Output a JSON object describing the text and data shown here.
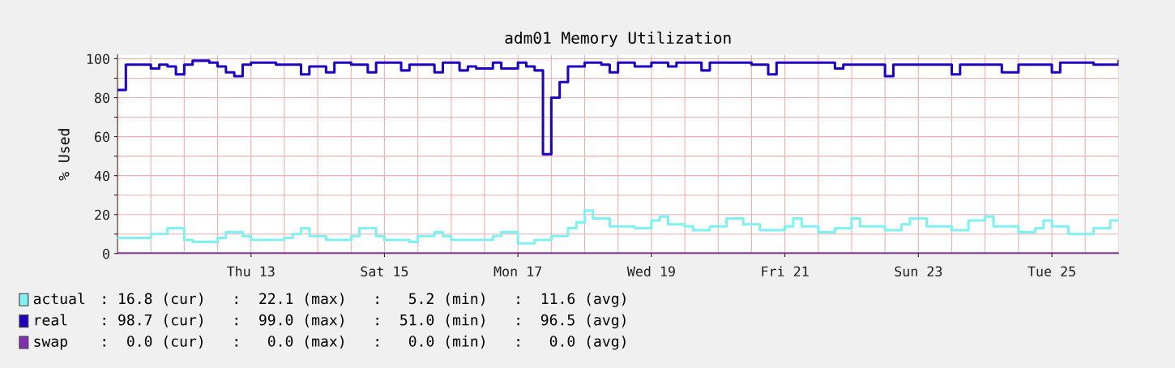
{
  "chart_data": {
    "type": "step",
    "title": "adm01 Memory Utilization",
    "ylabel": "% Used",
    "categories": [
      null,
      null,
      null,
      null,
      null,
      null,
      null,
      null,
      null,
      null,
      null,
      null,
      null,
      null,
      null,
      null,
      "Thu 13",
      null,
      null,
      null,
      null,
      null,
      null,
      null,
      null,
      null,
      null,
      null,
      null,
      null,
      null,
      null,
      "Sat 15",
      null,
      null,
      null,
      null,
      null,
      null,
      null,
      null,
      null,
      null,
      null,
      null,
      null,
      null,
      null,
      "Mon 17",
      null,
      null,
      null,
      null,
      null,
      null,
      null,
      null,
      null,
      null,
      null,
      null,
      null,
      null,
      null,
      "Wed 19",
      null,
      null,
      null,
      null,
      null,
      null,
      null,
      null,
      null,
      null,
      null,
      null,
      null,
      null,
      null,
      "Fri 21",
      null,
      null,
      null,
      null,
      null,
      null,
      null,
      null,
      null,
      null,
      null,
      null,
      null,
      null,
      null,
      "Sun 23",
      null,
      null,
      null,
      null,
      null,
      null,
      null,
      null,
      null,
      null,
      null,
      null,
      null,
      null,
      null,
      "Tue 25",
      null,
      null,
      null,
      null,
      null,
      null,
      null,
      null
    ],
    "ylim": [
      0,
      102
    ],
    "yticks": [
      0,
      {
        "value": 10,
        "label": null
      },
      20,
      {
        "value": 30,
        "label": null
      },
      40,
      {
        "value": 50,
        "label": null
      },
      60,
      {
        "value": 70,
        "label": null
      },
      80,
      {
        "value": 90,
        "label": null
      },
      100
    ],
    "grid": true,
    "legend": "bottom",
    "marker": "none",
    "line_style": "solid",
    "series": [
      {
        "name": "actual",
        "color": "#80f0f0",
        "values": [
          8,
          8,
          8,
          8,
          10,
          10,
          13,
          13,
          7,
          6,
          6,
          6,
          8,
          11,
          11,
          9,
          7,
          7,
          7,
          7,
          8,
          10,
          13,
          9,
          9,
          7,
          7,
          7,
          9,
          13,
          13,
          9,
          7,
          7,
          7,
          6,
          9,
          9,
          11,
          9,
          7,
          7,
          7,
          7,
          7,
          9,
          11,
          11,
          5.2,
          5.2,
          7,
          7,
          9,
          9,
          13,
          16,
          22.1,
          18,
          18,
          14,
          14,
          14,
          13,
          13,
          17,
          19,
          15,
          15,
          14,
          12,
          12,
          14,
          14,
          18,
          18,
          15,
          15,
          12,
          12,
          12,
          14,
          18,
          14,
          14,
          11,
          11,
          13,
          13,
          18,
          14,
          14,
          14,
          12,
          12,
          15,
          18,
          18,
          14,
          14,
          14,
          12,
          12,
          17,
          17,
          19,
          14,
          14,
          14,
          11,
          11,
          13,
          17,
          14,
          14,
          10,
          10,
          10,
          13,
          13,
          17,
          16.8
        ]
      },
      {
        "name": "real",
        "color": "#2000c0",
        "values": [
          84,
          97,
          97,
          97,
          95,
          97,
          96,
          92,
          97,
          99,
          99,
          98,
          96,
          93,
          91,
          97,
          98,
          98,
          98,
          97,
          97,
          97,
          92,
          96,
          96,
          93,
          98,
          98,
          97,
          97,
          93,
          98,
          98,
          98,
          94,
          97,
          97,
          97,
          93,
          98,
          98,
          94,
          96,
          95,
          95,
          98,
          95,
          95,
          98,
          96,
          94,
          51,
          80,
          88,
          96,
          96,
          98,
          98,
          97,
          93,
          98,
          98,
          96,
          96,
          98,
          98,
          96,
          98,
          98,
          98,
          94,
          98,
          98,
          98,
          98,
          98,
          97,
          97,
          92,
          98,
          98,
          98,
          98,
          98,
          98,
          98,
          95,
          97,
          97,
          97,
          97,
          97,
          91,
          97,
          97,
          97,
          97,
          97,
          97,
          97,
          92,
          97,
          97,
          97,
          97,
          97,
          93,
          93,
          97,
          97,
          97,
          97,
          93,
          98,
          98,
          98,
          98,
          97,
          97,
          97,
          98.7
        ]
      },
      {
        "name": "swap",
        "color": "#8030b0",
        "values": [
          0,
          0,
          0,
          0,
          0,
          0,
          0,
          0,
          0,
          0,
          0,
          0,
          0,
          0,
          0,
          0,
          0,
          0,
          0,
          0,
          0,
          0,
          0,
          0,
          0,
          0,
          0,
          0,
          0,
          0,
          0,
          0,
          0,
          0,
          0,
          0,
          0,
          0,
          0,
          0,
          0,
          0,
          0,
          0,
          0,
          0,
          0,
          0,
          0,
          0,
          0,
          0,
          0,
          0,
          0,
          0,
          0,
          0,
          0,
          0,
          0,
          0,
          0,
          0,
          0,
          0,
          0,
          0,
          0,
          0,
          0,
          0,
          0,
          0,
          0,
          0,
          0,
          0,
          0,
          0,
          0,
          0,
          0,
          0,
          0,
          0,
          0,
          0,
          0,
          0,
          0,
          0,
          0,
          0,
          0,
          0,
          0,
          0,
          0,
          0,
          0,
          0,
          0,
          0,
          0,
          0,
          0,
          0,
          0,
          0,
          0,
          0,
          0,
          0,
          0,
          0,
          0,
          0,
          0,
          0,
          0
        ]
      }
    ],
    "annotations": [
      ": 16.8 (cur)   :  22.1 (max)   :   5.2 (min)   :  11.6 (avg)",
      ": 98.7 (cur)   :  99.0 (max)   :  51.0 (min)   :  96.5 (avg)",
      ":  0.0 (cur)   :   0.0 (max)   :   0.0 (min)   :   0.0 (avg)"
    ]
  }
}
